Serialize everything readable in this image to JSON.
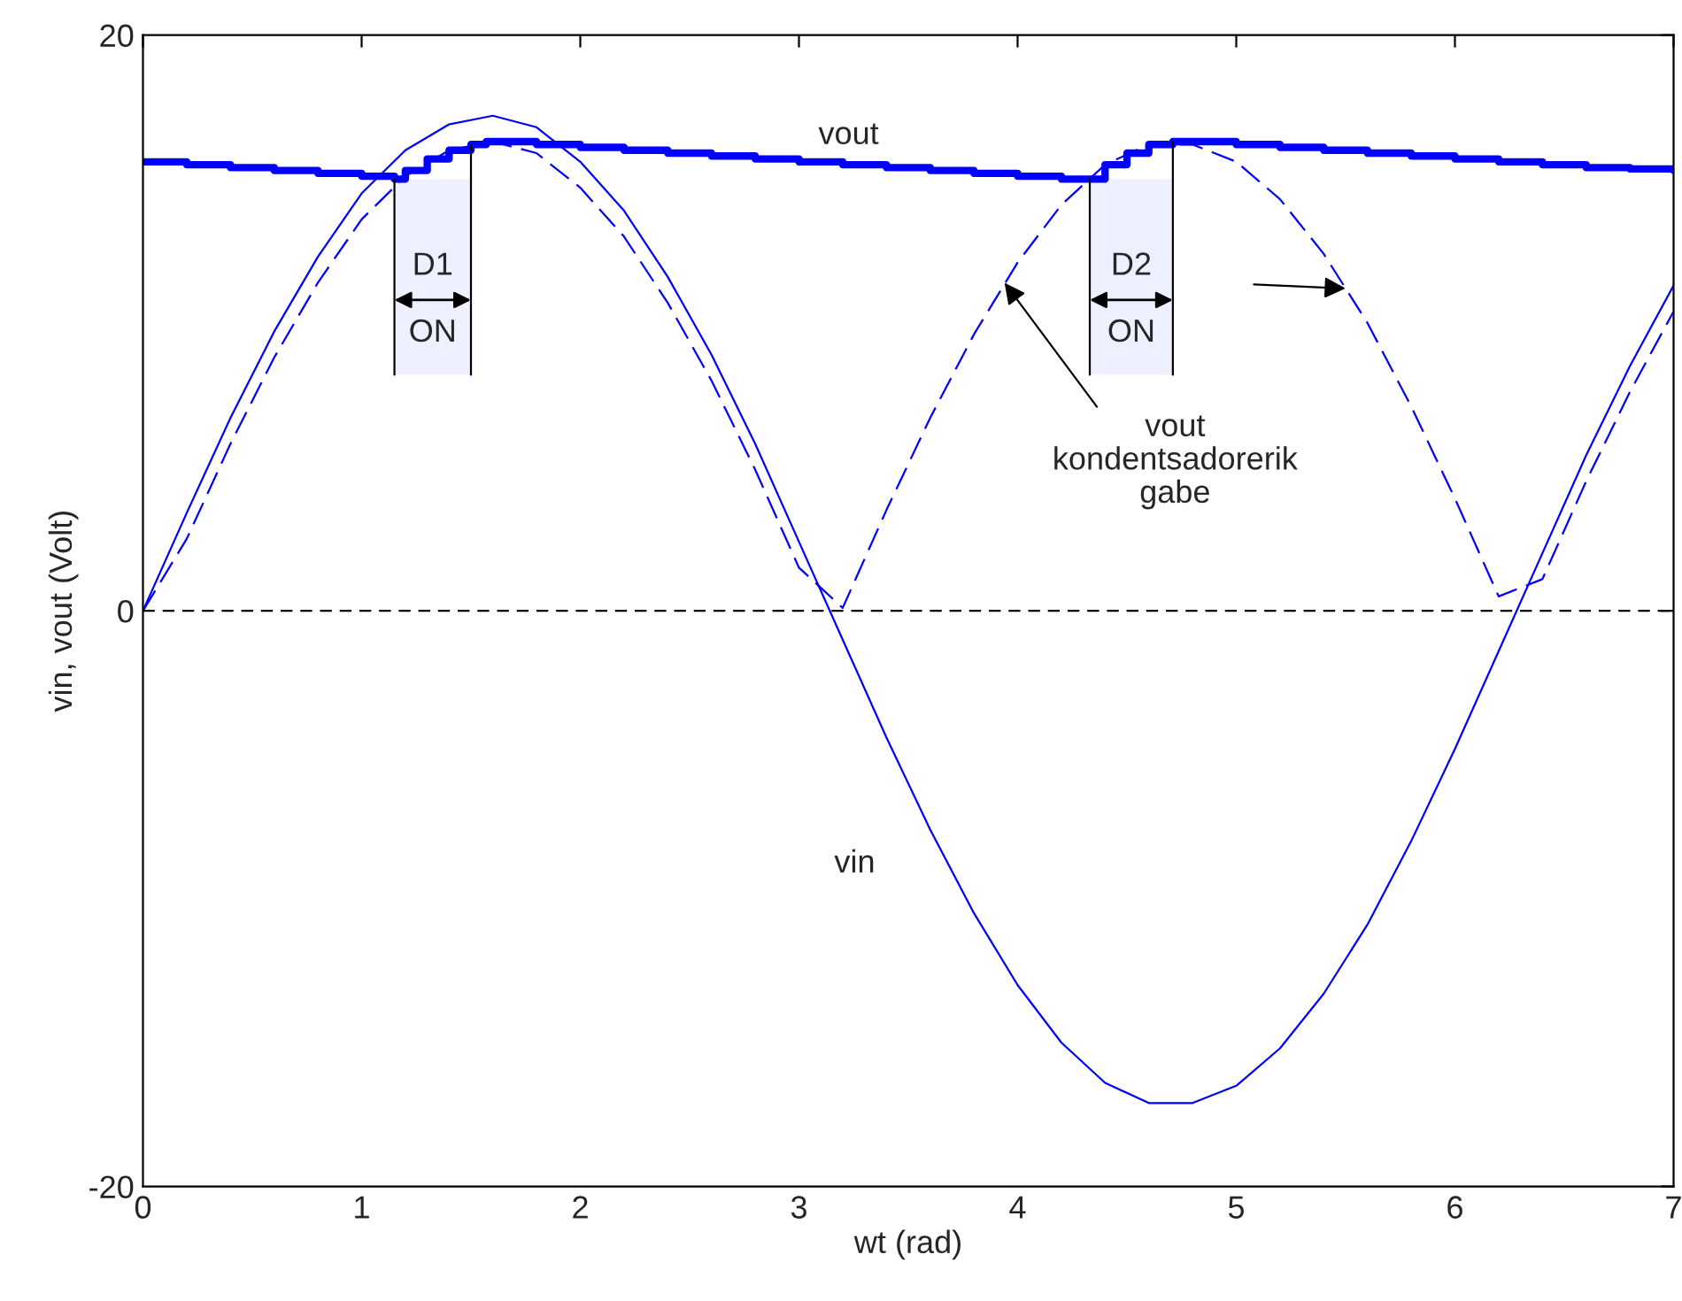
{
  "chart_data": {
    "type": "line",
    "xlabel": "wt (rad)",
    "ylabel": "vin, vout (Volt)",
    "xlim": [
      0,
      7
    ],
    "ylim": [
      -20,
      20
    ],
    "xticks": [
      0,
      1,
      2,
      3,
      4,
      5,
      6,
      7
    ],
    "yticks": [
      -20,
      0,
      20
    ],
    "grid": false,
    "legend": false,
    "series": [
      {
        "name": "vin",
        "color": "#0000ff",
        "line_style": "solid",
        "x": [
          0,
          0.2,
          0.4,
          0.6,
          0.8,
          1.0,
          1.2,
          1.4,
          1.6,
          1.8,
          2.0,
          2.2,
          2.4,
          2.6,
          2.8,
          3.0,
          3.2,
          3.4,
          3.6,
          3.8,
          4.0,
          4.2,
          4.4,
          4.6,
          4.8,
          5.0,
          5.2,
          5.4,
          5.6,
          5.8,
          6.0,
          6.2,
          6.4,
          6.6,
          6.8,
          7.0
        ],
        "values": [
          0,
          3.4,
          6.7,
          9.7,
          12.3,
          14.5,
          16.0,
          16.9,
          17.2,
          16.8,
          15.6,
          13.9,
          11.6,
          8.9,
          5.8,
          2.4,
          -1.0,
          -4.4,
          -7.6,
          -10.5,
          -13.0,
          -15.0,
          -16.4,
          -17.1,
          -17.1,
          -16.5,
          -15.2,
          -13.3,
          -10.9,
          -8.0,
          -4.8,
          -1.4,
          2.0,
          5.4,
          8.5,
          11.3
        ]
      },
      {
        "color": "#0000ff",
        "line_style": "dashed",
        "x": [
          0,
          0.2,
          0.4,
          0.6,
          0.8,
          1.0,
          1.2,
          1.4,
          1.6,
          1.8,
          2.0,
          2.2,
          2.4,
          2.6,
          2.8,
          3.0,
          3.2,
          3.4,
          3.6,
          3.8,
          4.0,
          4.2,
          4.4,
          4.6,
          4.8,
          5.0,
          5.2,
          5.4,
          5.6,
          5.8,
          6.0,
          6.2,
          6.4,
          6.6,
          6.8,
          7.0
        ],
        "values": [
          0,
          2.5,
          5.8,
          8.8,
          11.4,
          13.6,
          15.1,
          16.0,
          16.3,
          15.9,
          14.7,
          13.0,
          10.7,
          8.0,
          4.9,
          1.5,
          0.1,
          3.5,
          6.7,
          9.6,
          12.1,
          14.1,
          15.5,
          16.2,
          16.2,
          15.6,
          14.3,
          12.4,
          10.0,
          7.1,
          3.9,
          0.5,
          1.1,
          4.5,
          7.6,
          10.4
        ]
      },
      {
        "type": "step",
        "name": "vout",
        "color": "#0000ff",
        "line_style": "solid",
        "x": [
          0,
          0.2,
          0.4,
          0.6,
          0.8,
          1.0,
          1.15,
          1.2,
          1.3,
          1.4,
          1.5,
          1.57,
          1.8,
          2.0,
          2.2,
          2.4,
          2.6,
          2.8,
          3.0,
          3.2,
          3.4,
          3.6,
          3.8,
          4.0,
          4.2,
          4.33,
          4.4,
          4.5,
          4.6,
          4.71,
          5.0,
          5.2,
          5.4,
          5.6,
          5.8,
          6.0,
          6.2,
          6.4,
          6.6,
          6.8,
          7.0
        ],
        "values": [
          15.6,
          15.5,
          15.4,
          15.3,
          15.2,
          15.1,
          15.0,
          15.3,
          15.7,
          16.0,
          16.2,
          16.3,
          16.2,
          16.1,
          16.0,
          15.9,
          15.8,
          15.7,
          15.6,
          15.5,
          15.4,
          15.3,
          15.2,
          15.1,
          15.0,
          15.0,
          15.5,
          15.9,
          16.2,
          16.3,
          16.2,
          16.1,
          16.0,
          15.9,
          15.8,
          15.7,
          15.6,
          15.5,
          15.4,
          15.35,
          15.3
        ]
      }
    ],
    "ref_lines": [
      {
        "axis": "y",
        "value": 0,
        "color": "#000000",
        "line_style": "dashed"
      }
    ],
    "bands": [
      {
        "axis": "x",
        "from": 1.15,
        "to": 1.5,
        "label": "D1\nON",
        "color": "#eef0ff"
      },
      {
        "axis": "x",
        "from": 4.33,
        "to": 4.71,
        "label": "D2\nON",
        "color": "#eef0ff"
      }
    ],
    "annotations": [
      {
        "text": "vout\nkondentsadorerik\ngabe",
        "x": 3.94,
        "y": 11.4
      }
    ]
  }
}
